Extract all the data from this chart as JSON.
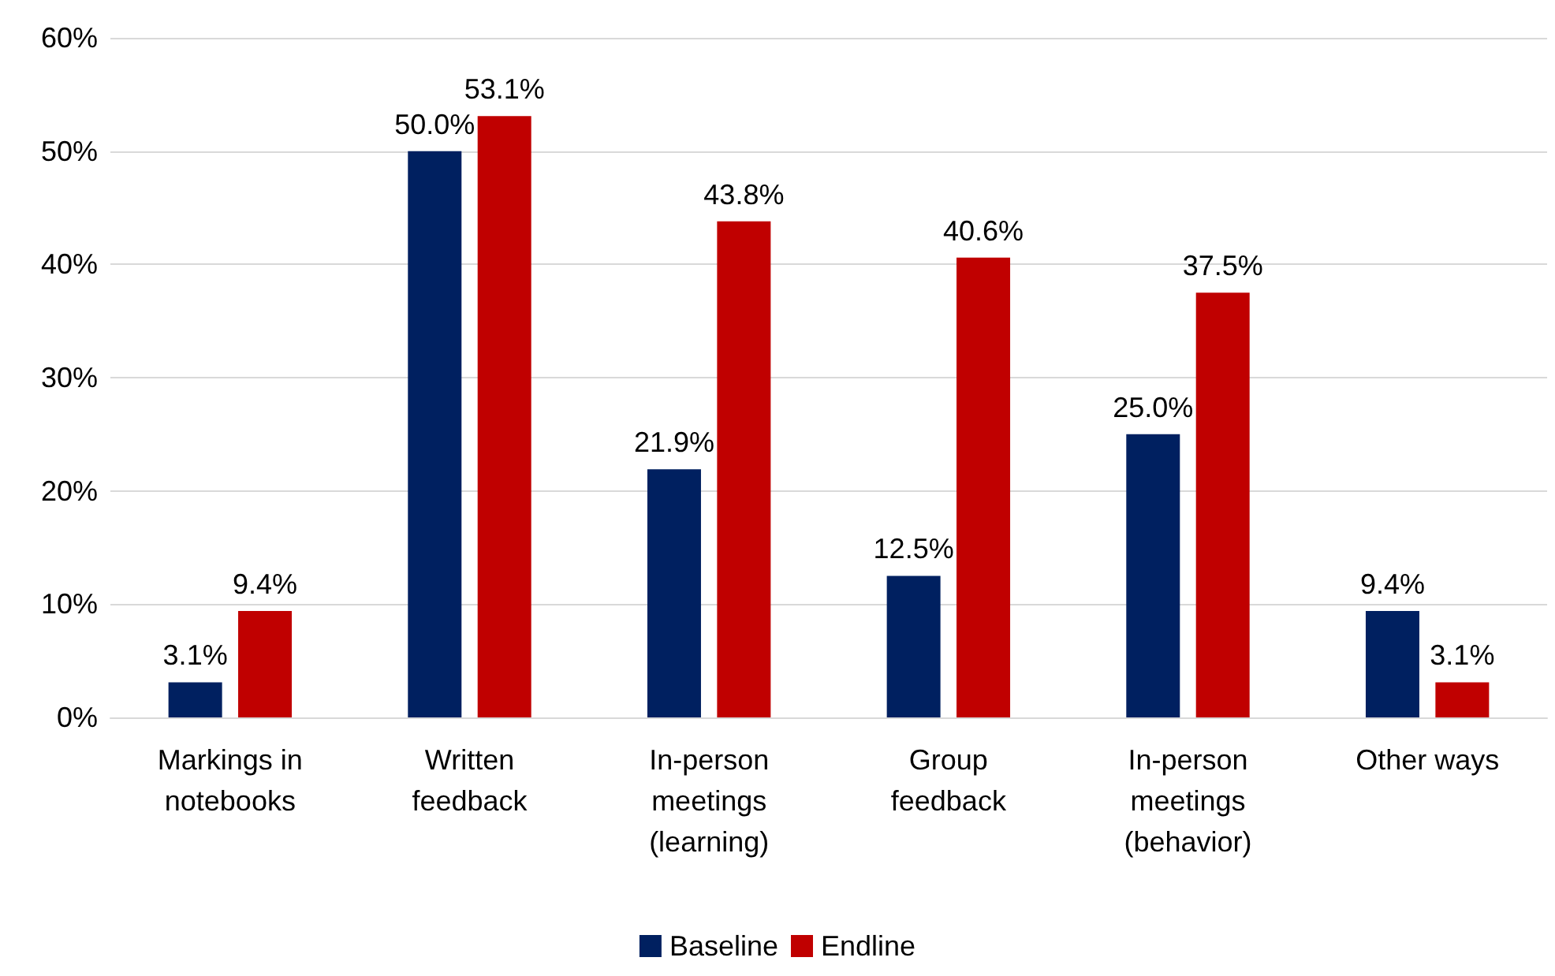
{
  "chart_data": {
    "type": "bar",
    "categories": [
      "Markings in\nnotebooks",
      "Written\nfeedback",
      "In-person\nmeetings\n(learning)",
      "Group\nfeedback",
      "In-person\nmeetings\n(behavior)",
      "Other ways"
    ],
    "series": [
      {
        "name": "Baseline",
        "color": "#002060",
        "values": [
          3.1,
          50.0,
          21.9,
          12.5,
          25.0,
          9.4
        ],
        "value_labels": [
          "3.1%",
          "50.0%",
          "21.9%",
          "12.5%",
          "25.0%",
          "9.4%"
        ]
      },
      {
        "name": "Endline",
        "color": "#c00000",
        "values": [
          9.4,
          53.1,
          43.8,
          40.6,
          37.5,
          3.1
        ],
        "value_labels": [
          "9.4%",
          "53.1%",
          "43.8%",
          "40.6%",
          "37.5%",
          "3.1%"
        ]
      }
    ],
    "ylim": [
      0,
      60
    ],
    "yticks": [
      {
        "value": 0,
        "label": "0%"
      },
      {
        "value": 10,
        "label": "10%"
      },
      {
        "value": 20,
        "label": "20%"
      },
      {
        "value": 30,
        "label": "30%"
      },
      {
        "value": 40,
        "label": "40%"
      },
      {
        "value": 50,
        "label": "50%"
      },
      {
        "value": 60,
        "label": "60%"
      }
    ],
    "grid": "y",
    "legend": "bottom"
  }
}
